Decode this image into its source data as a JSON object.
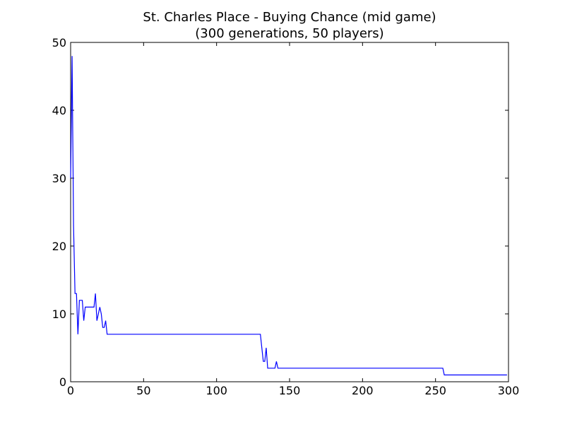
{
  "chart_data": {
    "type": "line",
    "title": "St. Charles Place - Buying Chance (mid game)",
    "subtitle": "(300 generations, 50 players)",
    "xlabel": "",
    "ylabel": "",
    "xlim": [
      0,
      300
    ],
    "ylim": [
      0,
      50
    ],
    "x_ticks": [
      0,
      50,
      100,
      150,
      200,
      250,
      300
    ],
    "y_ticks": [
      0,
      10,
      20,
      30,
      40,
      50
    ],
    "grid": false,
    "legend": "none",
    "series": [
      {
        "color": "#0000ff",
        "points": [
          [
            0,
            30
          ],
          [
            1,
            48
          ],
          [
            2,
            23
          ],
          [
            3,
            13
          ],
          [
            4,
            13
          ],
          [
            5,
            7
          ],
          [
            6,
            12
          ],
          [
            7,
            12
          ],
          [
            8,
            12
          ],
          [
            9,
            9
          ],
          [
            10,
            11
          ],
          [
            11,
            11
          ],
          [
            12,
            11
          ],
          [
            13,
            11
          ],
          [
            14,
            11
          ],
          [
            15,
            11
          ],
          [
            16,
            11
          ],
          [
            17,
            13
          ],
          [
            18,
            9
          ],
          [
            19,
            10
          ],
          [
            20,
            11
          ],
          [
            21,
            10
          ],
          [
            22,
            8
          ],
          [
            23,
            8
          ],
          [
            24,
            9
          ],
          [
            25,
            7
          ],
          [
            26,
            7
          ],
          [
            130,
            7
          ],
          [
            131,
            5
          ],
          [
            132,
            3
          ],
          [
            133,
            3
          ],
          [
            134,
            5
          ],
          [
            135,
            2
          ],
          [
            136,
            2
          ],
          [
            137,
            2
          ],
          [
            138,
            2
          ],
          [
            139,
            2
          ],
          [
            140,
            2
          ],
          [
            141,
            3
          ],
          [
            142,
            2
          ],
          [
            143,
            2
          ],
          [
            255,
            2
          ],
          [
            256,
            1
          ],
          [
            299,
            1
          ]
        ]
      }
    ]
  }
}
